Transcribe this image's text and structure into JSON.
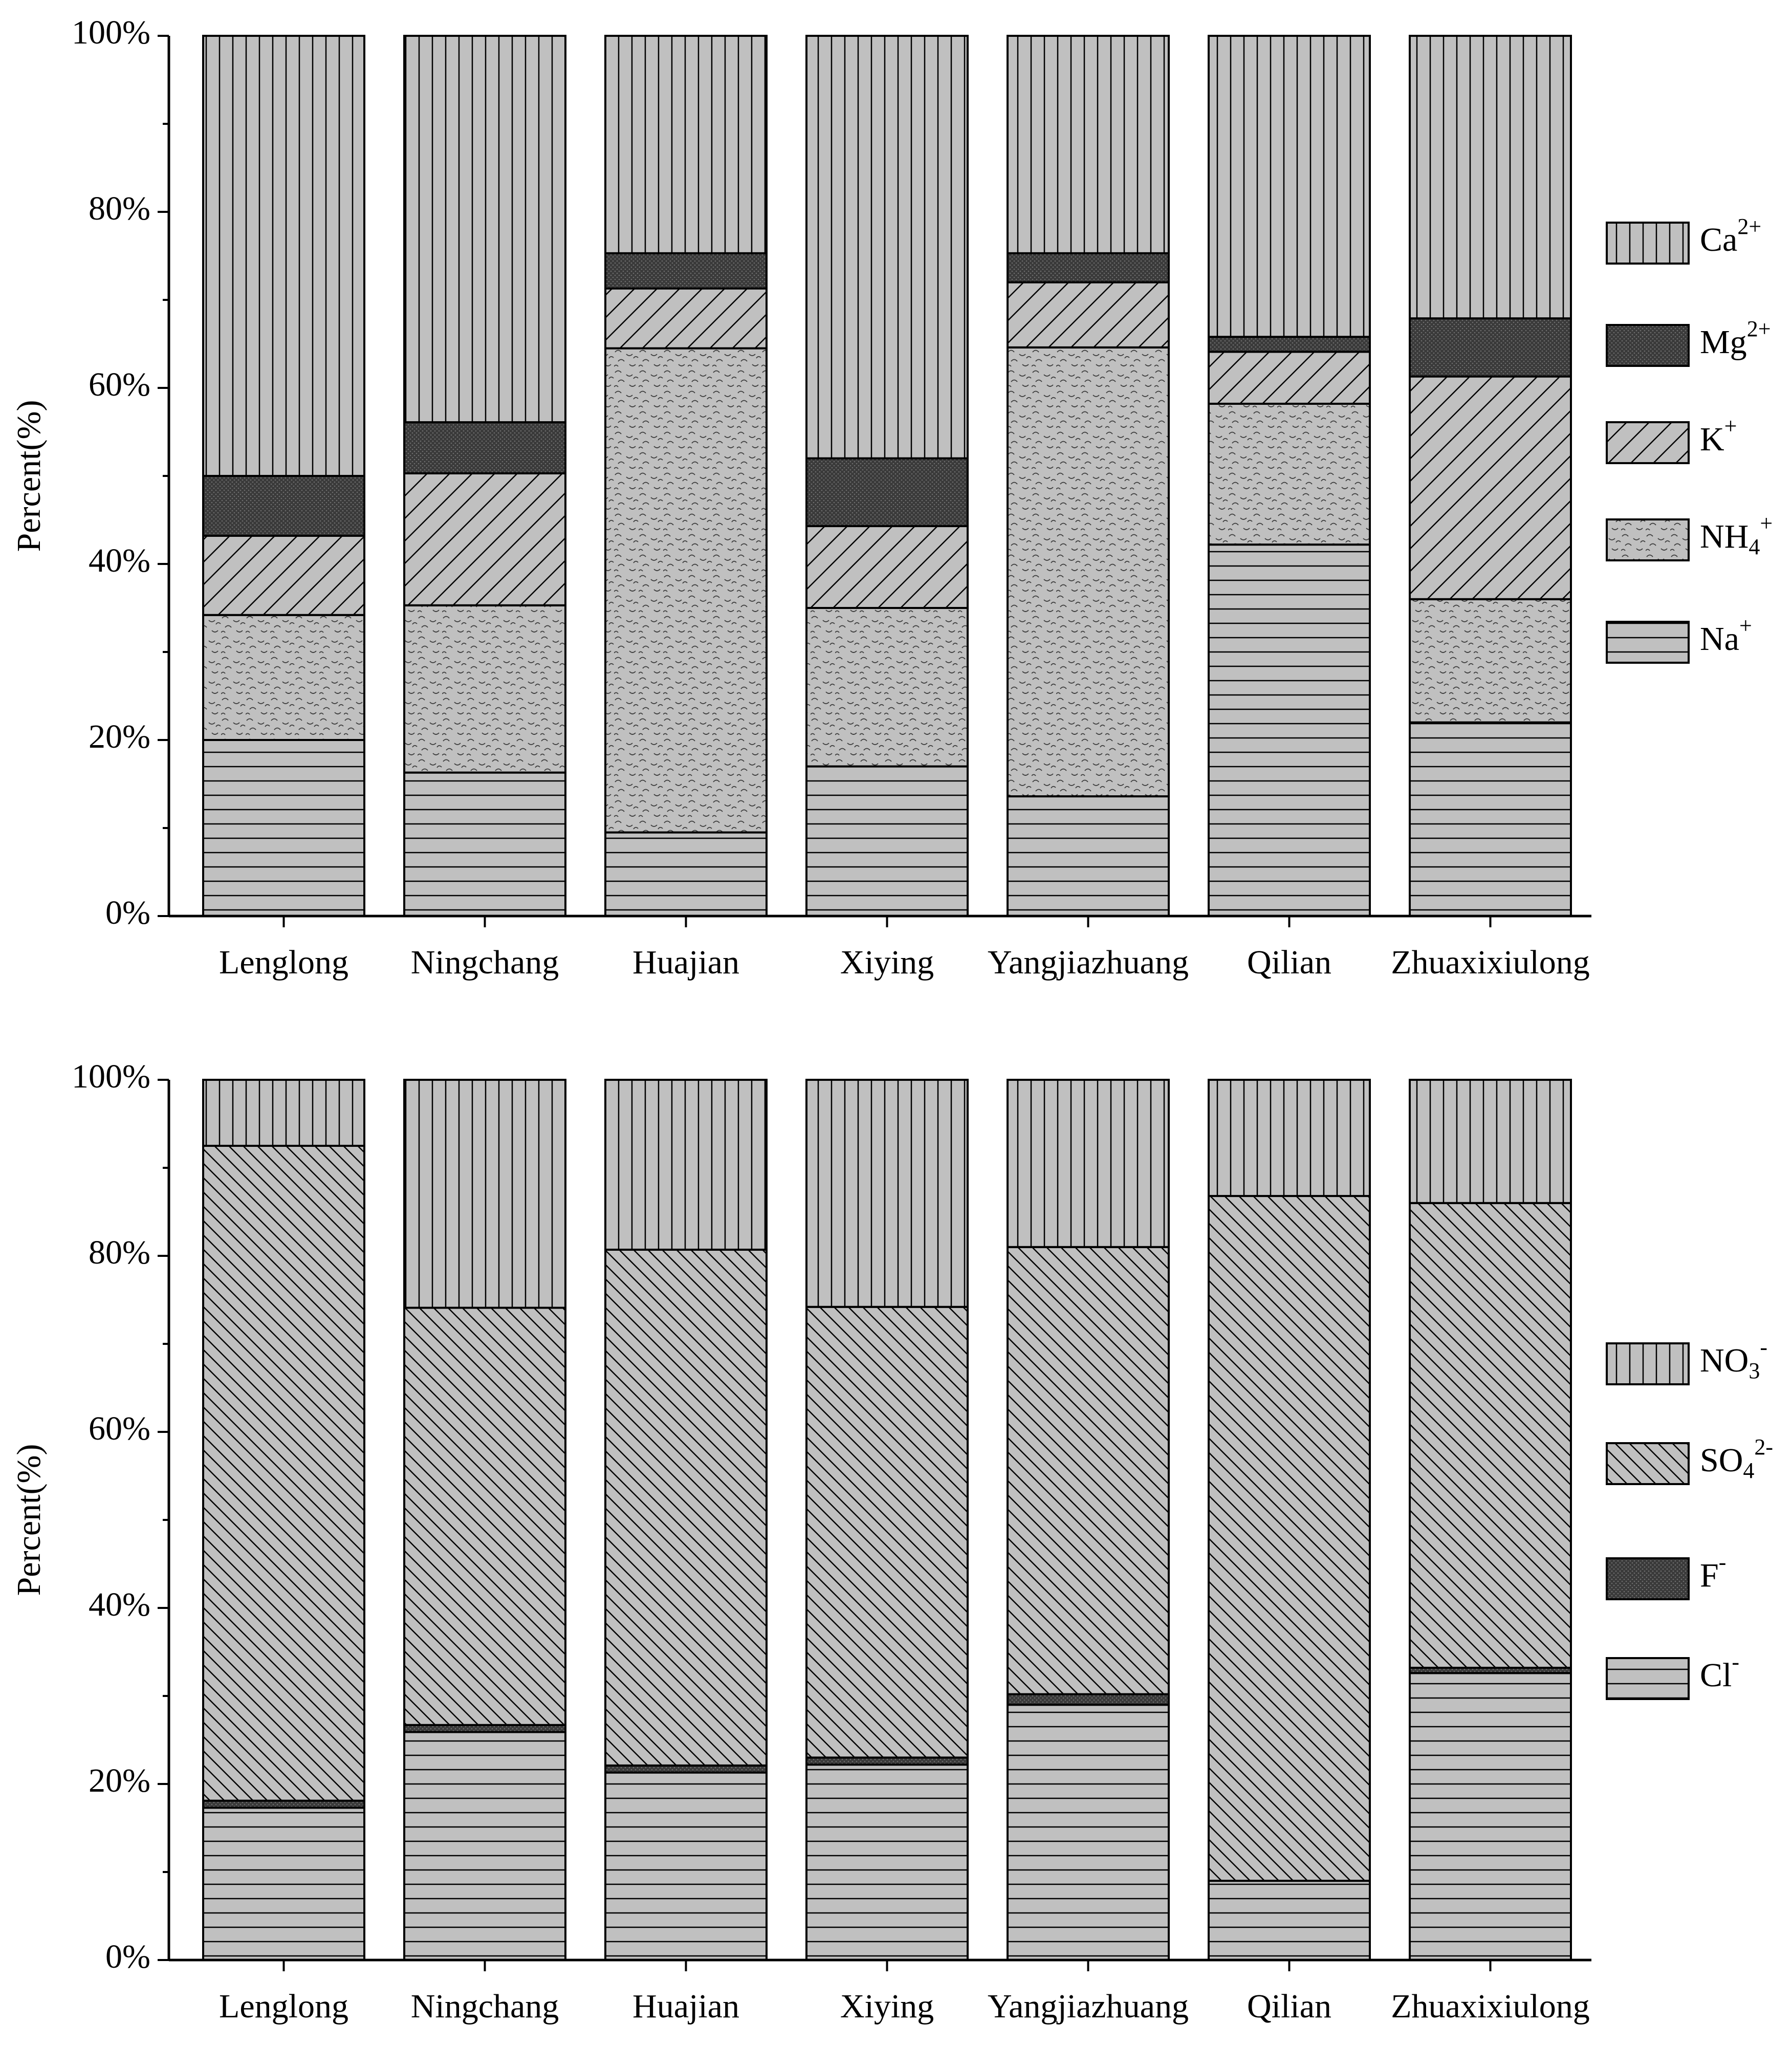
{
  "colors": {
    "bar_fill": "#c0c0c0",
    "dark_fill": "#3a3a3a",
    "stroke": "#000000",
    "background": "#ffffff"
  },
  "chart_data": [
    {
      "type": "bar",
      "stacked": true,
      "title": "",
      "xlabel": "",
      "ylabel": "Percent(%)",
      "ylim": [
        0,
        100
      ],
      "yticks": [
        0,
        20,
        40,
        60,
        80,
        100
      ],
      "ytick_labels": [
        "0%",
        "20%",
        "40%",
        "60%",
        "80%",
        "100%"
      ],
      "categories": [
        "Lenglong",
        "Ningchang",
        "Huajian",
        "Xiying",
        "Yangjiazhuang",
        "Qilian",
        "Zhuaxixiulong"
      ],
      "series": [
        {
          "name": "Na+",
          "label": "Na",
          "sup": "+",
          "sub": "",
          "pattern": "hlines",
          "values": [
            20.0,
            16.3,
            9.5,
            17.0,
            13.6,
            42.2,
            22.0
          ]
        },
        {
          "name": "NH4+",
          "label": "NH",
          "sub": "4",
          "sup": "+",
          "pattern": "wavy",
          "values": [
            14.2,
            19.0,
            55.0,
            18.0,
            51.0,
            16.0,
            14.0
          ]
        },
        {
          "name": "K+",
          "label": "K",
          "sub": "",
          "sup": "+",
          "pattern": "diag-up",
          "values": [
            9.0,
            15.0,
            6.8,
            9.3,
            7.4,
            5.9,
            25.3
          ]
        },
        {
          "name": "Mg2+",
          "label": "Mg",
          "sub": "",
          "sup": "2+",
          "pattern": "dark",
          "values": [
            6.8,
            5.8,
            4.0,
            7.7,
            3.3,
            1.7,
            6.6
          ]
        },
        {
          "name": "Ca2+",
          "label": "Ca",
          "sub": "",
          "sup": "2+",
          "pattern": "vlines",
          "values": [
            50.0,
            43.9,
            24.7,
            48.0,
            24.7,
            34.2,
            32.1
          ]
        }
      ],
      "legend_order": [
        "Ca2+",
        "Mg2+",
        "K+",
        "NH4+",
        "Na+"
      ],
      "legend_position": "right"
    },
    {
      "type": "bar",
      "stacked": true,
      "title": "",
      "xlabel": "",
      "ylabel": "Percent(%)",
      "ylim": [
        0,
        100
      ],
      "yticks": [
        0,
        20,
        40,
        60,
        80,
        100
      ],
      "ytick_labels": [
        "0%",
        "20%",
        "40%",
        "60%",
        "80%",
        "100%"
      ],
      "categories": [
        "Lenglong",
        "Ningchang",
        "Huajian",
        "Xiying",
        "Yangjiazhuang",
        "Qilian",
        "Zhuaxixiulong"
      ],
      "series": [
        {
          "name": "Cl-",
          "label": "Cl",
          "sub": "",
          "sup": "-",
          "pattern": "hlines",
          "values": [
            17.3,
            25.9,
            21.3,
            22.2,
            29.0,
            9.0,
            32.6
          ]
        },
        {
          "name": "F-",
          "label": "F",
          "sub": "",
          "sup": "-",
          "pattern": "dark",
          "values": [
            0.8,
            0.8,
            0.8,
            0.8,
            1.2,
            0.0,
            0.6
          ]
        },
        {
          "name": "SO42-",
          "label": "SO",
          "sub": "4",
          "sup": "2-",
          "pattern": "diag-down",
          "values": [
            74.4,
            47.4,
            58.6,
            51.2,
            50.8,
            77.8,
            52.8
          ]
        },
        {
          "name": "NO3-",
          "label": "NO",
          "sub": "3",
          "sup": "-",
          "pattern": "vlines",
          "values": [
            7.5,
            25.9,
            19.3,
            25.8,
            19.0,
            13.2,
            14.0
          ]
        }
      ],
      "legend_order": [
        "NO3-",
        "SO42-",
        "F-",
        "Cl-"
      ],
      "legend_position": "right"
    }
  ]
}
